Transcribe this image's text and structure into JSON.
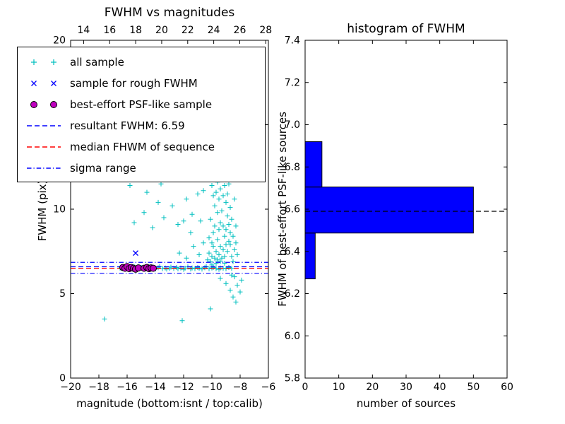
{
  "figure": {
    "background": "#ffffff",
    "frame_color": "#000000"
  },
  "chart_data": [
    {
      "type": "scatter",
      "title": "FWHM vs magnitudes",
      "xlabel": "magnitude (bottom:isnt / top:calib)",
      "ylabel": "FWHM (pix)",
      "xlim": [
        -20,
        -6
      ],
      "ylim": [
        0,
        20
      ],
      "xticks": [
        -20,
        -18,
        -16,
        -14,
        -12,
        -10,
        -8,
        -6
      ],
      "yticks": [
        0,
        5,
        10,
        15,
        20
      ],
      "top_axis": {
        "ticks": [
          14,
          16,
          18,
          20,
          22,
          24,
          26,
          28
        ],
        "xlim": [
          13.0,
          28.2
        ]
      },
      "series": [
        {
          "name": "all sample",
          "marker": "plus",
          "color": "#00bfbf",
          "points": [
            [
              -16.5,
              6.52
            ],
            [
              -16.3,
              6.48
            ],
            [
              -16.1,
              6.55
            ],
            [
              -15.9,
              6.45
            ],
            [
              -15.7,
              6.5
            ],
            [
              -15.5,
              6.6
            ],
            [
              -15.4,
              6.42
            ],
            [
              -15.2,
              6.5
            ],
            [
              -15.0,
              6.55
            ],
            [
              -14.9,
              6.47
            ],
            [
              -14.7,
              6.52
            ],
            [
              -14.5,
              6.44
            ],
            [
              -14.4,
              6.58
            ],
            [
              -14.2,
              6.5
            ],
            [
              -14.0,
              6.46
            ],
            [
              -13.8,
              6.53
            ],
            [
              -13.7,
              6.6
            ],
            [
              -13.5,
              6.48
            ],
            [
              -13.3,
              6.52
            ],
            [
              -13.2,
              6.45
            ],
            [
              -13.0,
              6.5
            ],
            [
              -12.9,
              6.57
            ],
            [
              -12.7,
              6.49
            ],
            [
              -12.5,
              6.55
            ],
            [
              -12.4,
              6.47
            ],
            [
              -12.2,
              6.52
            ],
            [
              -12.0,
              6.44
            ],
            [
              -11.9,
              6.5
            ],
            [
              -11.7,
              6.58
            ],
            [
              -11.5,
              6.46
            ],
            [
              -11.4,
              6.52
            ],
            [
              -11.2,
              6.48
            ],
            [
              -11.0,
              6.55
            ],
            [
              -10.9,
              6.5
            ],
            [
              -10.7,
              6.45
            ],
            [
              -10.5,
              6.53
            ],
            [
              -10.4,
              6.6
            ],
            [
              -10.2,
              6.47
            ],
            [
              -10.0,
              6.52
            ],
            [
              -9.9,
              6.55
            ],
            [
              -9.7,
              6.48
            ],
            [
              -9.5,
              6.44
            ],
            [
              -9.4,
              6.52
            ],
            [
              -9.2,
              6.5
            ],
            [
              -9.0,
              6.47
            ],
            [
              -8.8,
              6.55
            ],
            [
              -8.6,
              6.5
            ],
            [
              -10.3,
              7.0
            ],
            [
              -10.2,
              7.4
            ],
            [
              -10.1,
              6.9
            ],
            [
              -10.0,
              7.2
            ],
            [
              -9.9,
              7.8
            ],
            [
              -10.2,
              8.3
            ],
            [
              -10.0,
              8.0
            ],
            [
              -9.8,
              7.1
            ],
            [
              -9.7,
              7.5
            ],
            [
              -9.6,
              7.0
            ],
            [
              -9.9,
              8.6
            ],
            [
              -9.8,
              9.0
            ],
            [
              -10.1,
              9.4
            ],
            [
              -9.6,
              8.2
            ],
            [
              -9.5,
              7.3
            ],
            [
              -9.4,
              7.8
            ],
            [
              -9.5,
              8.8
            ],
            [
              -9.3,
              7.1
            ],
            [
              -9.2,
              7.6
            ],
            [
              -9.4,
              9.2
            ],
            [
              -9.6,
              9.8
            ],
            [
              -9.8,
              10.2
            ],
            [
              -9.5,
              10.6
            ],
            [
              -9.3,
              9.9
            ],
            [
              -9.2,
              9.0
            ],
            [
              -9.1,
              8.4
            ],
            [
              -9.0,
              7.9
            ],
            [
              -9.1,
              7.2
            ],
            [
              -8.9,
              7.5
            ],
            [
              -8.8,
              8.1
            ],
            [
              -9.0,
              8.8
            ],
            [
              -9.2,
              10.8
            ],
            [
              -9.4,
              11.2
            ],
            [
              -9.6,
              11.6
            ],
            [
              -9.3,
              11.9
            ],
            [
              -9.1,
              11.4
            ],
            [
              -9.0,
              10.4
            ],
            [
              -8.9,
              9.6
            ],
            [
              -8.8,
              9.1
            ],
            [
              -8.7,
              8.6
            ],
            [
              -9.0,
              12.1
            ],
            [
              -9.2,
              12.4
            ],
            [
              -9.5,
              12.0
            ],
            [
              -9.7,
              11.0
            ],
            [
              -9.9,
              10.8
            ],
            [
              -10.0,
              11.4
            ],
            [
              -9.8,
              11.9
            ],
            [
              -8.9,
              10.9
            ],
            [
              -8.8,
              11.5
            ],
            [
              -8.7,
              10.1
            ],
            [
              -8.6,
              9.4
            ],
            [
              -8.7,
              7.9
            ],
            [
              -8.6,
              7.2
            ],
            [
              -8.5,
              8.4
            ],
            [
              -8.6,
              12.2
            ],
            [
              -8.8,
              12.5
            ],
            [
              -9.1,
              6.8
            ],
            [
              -9.4,
              6.9
            ],
            [
              -9.7,
              6.8
            ],
            [
              -10.0,
              6.7
            ],
            [
              -8.5,
              6.9
            ],
            [
              -8.4,
              7.6
            ],
            [
              -8.4,
              10.6
            ],
            [
              -8.3,
              9.0
            ],
            [
              -8.3,
              8.0
            ],
            [
              -8.2,
              7.3
            ],
            [
              -15.8,
              11.4
            ],
            [
              -15.2,
              11.9
            ],
            [
              -14.6,
              11.0
            ],
            [
              -14.0,
              12.2
            ],
            [
              -13.6,
              11.5
            ],
            [
              -13.0,
              12.4
            ],
            [
              -12.6,
              11.8
            ],
            [
              -12.2,
              12.1
            ],
            [
              -15.5,
              9.2
            ],
            [
              -14.8,
              9.8
            ],
            [
              -14.2,
              8.9
            ],
            [
              -13.4,
              9.5
            ],
            [
              -12.8,
              10.2
            ],
            [
              -12.4,
              9.1
            ],
            [
              -11.8,
              10.6
            ],
            [
              -11.4,
              9.7
            ],
            [
              -11.0,
              10.9
            ],
            [
              -10.8,
              9.3
            ],
            [
              -11.6,
              11.8
            ],
            [
              -11.2,
              12.3
            ],
            [
              -10.6,
              11.1
            ],
            [
              -13.8,
              10.4
            ],
            [
              -12.3,
              7.4
            ],
            [
              -11.8,
              7.1
            ],
            [
              -11.3,
              7.8
            ],
            [
              -10.9,
              7.3
            ],
            [
              -10.6,
              8.0
            ],
            [
              -11.5,
              8.6
            ],
            [
              -12.0,
              9.3
            ],
            [
              -9.4,
              5.9
            ],
            [
              -9.0,
              5.6
            ],
            [
              -8.7,
              5.2
            ],
            [
              -8.5,
              4.8
            ],
            [
              -8.3,
              4.5
            ],
            [
              -8.6,
              6.1
            ],
            [
              -8.2,
              5.5
            ],
            [
              -8.0,
              5.1
            ],
            [
              -7.9,
              5.8
            ],
            [
              -8.4,
              6.0
            ],
            [
              -17.6,
              3.5
            ],
            [
              -12.1,
              3.4
            ],
            [
              -10.1,
              4.1
            ]
          ]
        },
        {
          "name": "sample for rough FWHM",
          "marker": "x",
          "color": "#0000ff",
          "points": [
            [
              -15.4,
              7.4
            ]
          ]
        },
        {
          "name": "best-effort PSF-like sample",
          "marker": "circle",
          "color": "#bf00bf",
          "points": [
            [
              -16.3,
              6.55
            ],
            [
              -16.15,
              6.5
            ],
            [
              -16.0,
              6.6
            ],
            [
              -15.85,
              6.48
            ],
            [
              -15.7,
              6.55
            ],
            [
              -15.55,
              6.5
            ],
            [
              -15.4,
              6.45
            ],
            [
              -15.2,
              6.52
            ],
            [
              -14.8,
              6.5
            ],
            [
              -14.6,
              6.55
            ],
            [
              -14.45,
              6.48
            ],
            [
              -14.3,
              6.52
            ],
            [
              -14.15,
              6.5
            ]
          ]
        }
      ],
      "hlines": [
        {
          "label": "sigma range (upper)",
          "y": 6.85,
          "color": "#0000ff",
          "style": "dashdot"
        },
        {
          "label": "resultant FWHM: 6.59",
          "y": 6.59,
          "color": "#0000ff",
          "style": "dashed"
        },
        {
          "label": "median FHWM of sequence",
          "y": 6.5,
          "color": "#ff0000",
          "style": "dashed"
        },
        {
          "label": "sigma range (lower)",
          "y": 6.2,
          "color": "#0000ff",
          "style": "dashdot"
        }
      ],
      "legend": [
        {
          "label": "all sample",
          "type": "plus",
          "color": "#00bfbf"
        },
        {
          "label": "sample for rough FWHM",
          "type": "cross",
          "color": "#0000ff"
        },
        {
          "label": "best-effort PSF-like sample",
          "type": "circle",
          "color": "#bf00bf"
        },
        {
          "label": "resultant FWHM: 6.59",
          "type": "dashed",
          "color": "#0000ff"
        },
        {
          "label": "median FHWM of sequence",
          "type": "dashed",
          "color": "#ff0000"
        },
        {
          "label": "sigma range",
          "type": "dashdot",
          "color": "#0000ff"
        }
      ]
    },
    {
      "type": "bar",
      "orientation": "horizontal",
      "title": "histogram of FWHM",
      "xlabel": "number of sources",
      "ylabel": "FWHM of best-effort PSF-like sources",
      "xlim": [
        0,
        60
      ],
      "ylim": [
        5.8,
        7.4
      ],
      "xticks": [
        0,
        10,
        20,
        30,
        40,
        50,
        60
      ],
      "yticks": [
        "5.8",
        "6.0",
        "6.2",
        "6.4",
        "6.6",
        "6.8",
        "7.0",
        "7.2",
        "7.4"
      ],
      "bar_color": "#0000ff",
      "edges": [
        6.27,
        6.487,
        6.705,
        6.92
      ],
      "counts": [
        3,
        50,
        5
      ],
      "hline": {
        "y": 6.59,
        "color": "#000000",
        "style": "dashed"
      }
    }
  ]
}
